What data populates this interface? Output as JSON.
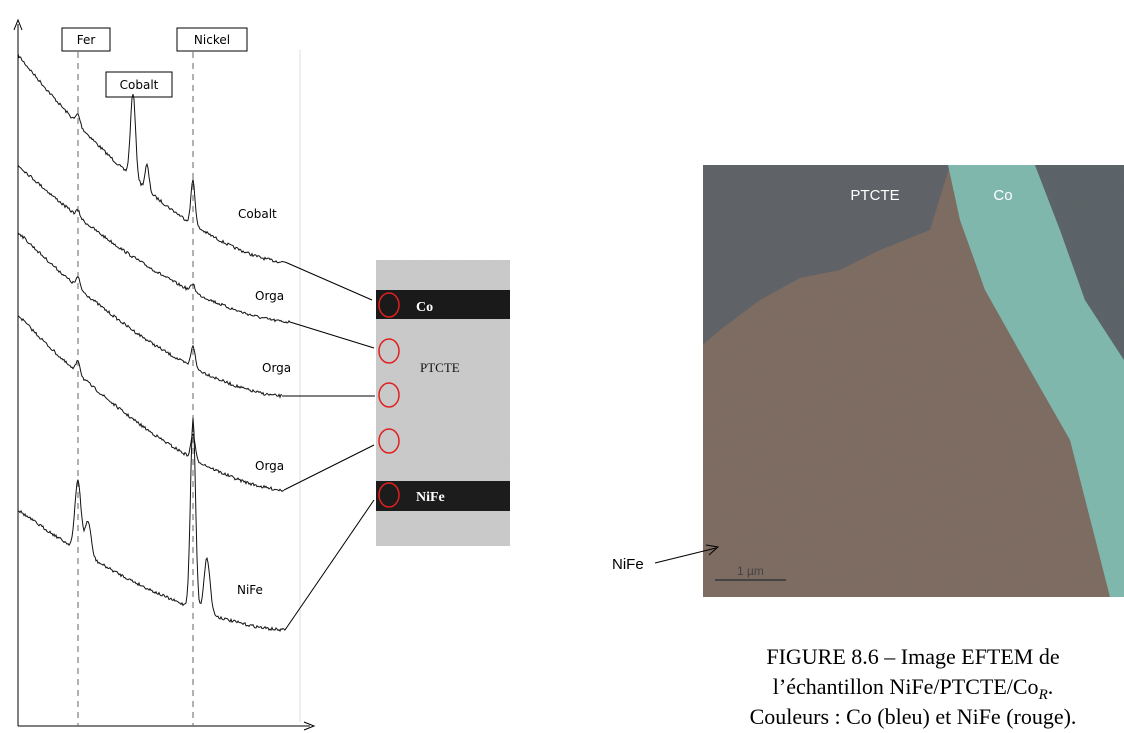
{
  "spectra": {
    "markers": {
      "fer": "Fer",
      "nickel": "Nickel",
      "cobalt": "Cobalt"
    },
    "traces": [
      "Cobalt",
      "Orga",
      "Orga",
      "Orga",
      "NiFe"
    ]
  },
  "tem_image": {
    "labels": {
      "co": "Co",
      "ptcte": "PTCTE",
      "nife": "NiFe"
    }
  },
  "eftem_image": {
    "labels": {
      "ptcte": "PTCTE",
      "co": "Co",
      "scale": "1 µm"
    },
    "arrow_label": "NiFe"
  },
  "caption": {
    "line1": "FIGURE 8.6 – Image EFTEM de",
    "line2_main": "l’échantillon NiFe/PTCTE/Co",
    "line2_sub": "R",
    "line2_end": ".",
    "line3": "Couleurs : Co (bleu) et NiFe (rouge)."
  }
}
